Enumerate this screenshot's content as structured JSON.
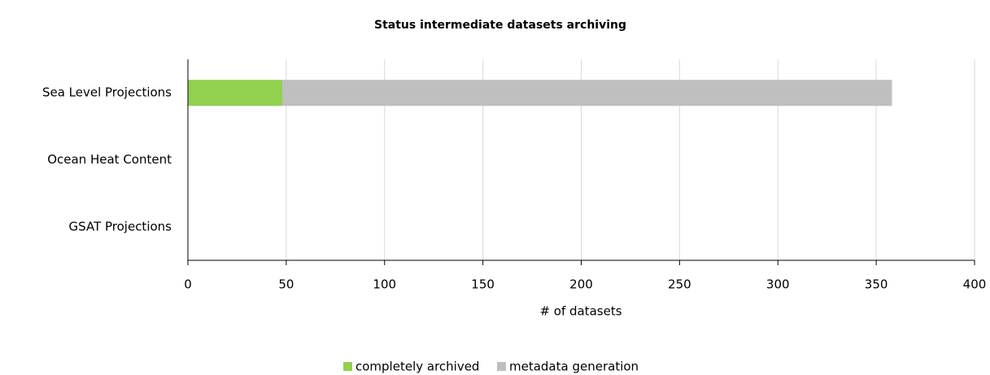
{
  "chart_data": {
    "type": "stacked-bar-horizontal",
    "title": "Status intermediate datasets archiving",
    "x_label": "# of datasets",
    "categories": [
      "Sea Level Projections",
      "Ocean Heat Content",
      "GSAT Projections"
    ],
    "series": [
      {
        "name": "completely archived",
        "color": "#92d050",
        "values": [
          48,
          0,
          0
        ]
      },
      {
        "name": "metadata generation",
        "color": "#bfbfbf",
        "values": [
          310,
          0,
          0
        ]
      }
    ],
    "xlim": [
      0,
      400
    ],
    "xticks": [
      0,
      50,
      100,
      150,
      200,
      250,
      300,
      350,
      400
    ],
    "grid": true,
    "legend": "bottom"
  }
}
